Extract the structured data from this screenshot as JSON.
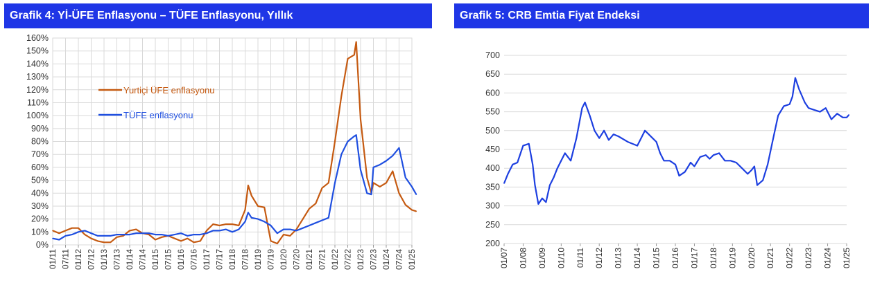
{
  "colors": {
    "banner": "#1f36e6",
    "ufe": "#c55a11",
    "tufe": "#1f4fe0",
    "crb": "#1d3fe0",
    "grid": "#d9d9d9"
  },
  "chart_data": [
    {
      "type": "line",
      "title": "Grafik 4: Yİ-ÜFE Enflasyonu – TÜFE Enflasyonu, Yıllık",
      "xlabel": "",
      "ylabel": "",
      "x_ticks": [
        "01/11",
        "07/11",
        "01/12",
        "07/12",
        "01/13",
        "07/13",
        "01/14",
        "07/14",
        "01/15",
        "07/15",
        "01/16",
        "07/16",
        "01/17",
        "07/17",
        "01/18",
        "07/18",
        "01/19",
        "07/19",
        "01/20",
        "07/20",
        "01/21",
        "07/21",
        "01/22",
        "07/22",
        "01/23",
        "07/23",
        "01/24",
        "07/24",
        "01/25"
      ],
      "ylim": [
        0,
        160
      ],
      "y_ticks": [
        "0%",
        "10%",
        "20%",
        "30%",
        "40%",
        "50%",
        "60%",
        "70%",
        "80%",
        "90%",
        "100%",
        "110%",
        "120%",
        "130%",
        "140%",
        "150%",
        "160%"
      ],
      "grid": true,
      "legend_position": "upper-left inside plot",
      "series": [
        {
          "name": "Yurtiçi ÜFE enflasyonu",
          "color": "#c55a11",
          "x": [
            2011.0,
            2011.25,
            2011.5,
            2011.75,
            2012.0,
            2012.25,
            2012.5,
            2012.75,
            2013.0,
            2013.25,
            2013.5,
            2013.75,
            2014.0,
            2014.25,
            2014.5,
            2014.75,
            2015.0,
            2015.25,
            2015.5,
            2015.75,
            2016.0,
            2016.25,
            2016.5,
            2016.75,
            2017.0,
            2017.25,
            2017.5,
            2017.75,
            2018.0,
            2018.25,
            2018.5,
            2018.62,
            2018.75,
            2019.0,
            2019.25,
            2019.5,
            2019.75,
            2020.0,
            2020.25,
            2020.5,
            2020.75,
            2021.0,
            2021.25,
            2021.5,
            2021.75,
            2022.0,
            2022.25,
            2022.5,
            2022.75,
            2022.83,
            2023.0,
            2023.25,
            2023.42,
            2023.5,
            2023.75,
            2024.0,
            2024.25,
            2024.5,
            2024.75,
            2025.0,
            2025.17
          ],
          "values": [
            11,
            9,
            11,
            13,
            13,
            8,
            5,
            3,
            2,
            2,
            6,
            7,
            11,
            12,
            9,
            8,
            4,
            6,
            7,
            5,
            3,
            5,
            2,
            3,
            11,
            16,
            15,
            16,
            16,
            15,
            27,
            46,
            38,
            30,
            29,
            3,
            1,
            8,
            7,
            12,
            20,
            28,
            32,
            44,
            48,
            80,
            115,
            144,
            147,
            157,
            97,
            52,
            40,
            48,
            45,
            48,
            57,
            40,
            31,
            27,
            26
          ]
        },
        {
          "name": "TÜFE enflasyonu",
          "color": "#1f4fe0",
          "x": [
            2011.0,
            2011.25,
            2011.5,
            2011.75,
            2012.0,
            2012.25,
            2012.5,
            2012.75,
            2013.0,
            2013.25,
            2013.5,
            2013.75,
            2014.0,
            2014.25,
            2014.5,
            2014.75,
            2015.0,
            2015.25,
            2015.5,
            2015.75,
            2016.0,
            2016.25,
            2016.5,
            2016.75,
            2017.0,
            2017.25,
            2017.5,
            2017.75,
            2018.0,
            2018.25,
            2018.5,
            2018.62,
            2018.75,
            2019.0,
            2019.25,
            2019.5,
            2019.75,
            2020.0,
            2020.25,
            2020.5,
            2020.75,
            2021.0,
            2021.25,
            2021.5,
            2021.75,
            2022.0,
            2022.25,
            2022.5,
            2022.75,
            2022.83,
            2023.0,
            2023.25,
            2023.42,
            2023.5,
            2023.75,
            2024.0,
            2024.25,
            2024.5,
            2024.75,
            2025.0,
            2025.17
          ],
          "values": [
            5,
            4,
            7,
            8,
            10,
            11,
            9,
            7,
            7,
            7,
            8,
            8,
            8,
            9,
            9,
            9,
            8,
            8,
            7,
            8,
            9,
            7,
            8,
            8,
            9,
            11,
            11,
            12,
            10,
            12,
            18,
            25,
            21,
            20,
            18,
            15,
            9,
            12,
            12,
            11,
            13,
            15,
            17,
            19,
            21,
            48,
            70,
            80,
            84,
            85,
            58,
            40,
            39,
            60,
            62,
            65,
            69,
            75,
            52,
            45,
            39
          ]
        }
      ]
    },
    {
      "type": "line",
      "title": "Grafik 5: CRB Emtia Fiyat Endeksi",
      "xlabel": "",
      "ylabel": "",
      "x_ticks": [
        "01/07",
        "01/08",
        "01/09",
        "01/10",
        "01/11",
        "01/12",
        "01/13",
        "01/14",
        "01/15",
        "01/16",
        "01/17",
        "01/18",
        "01/19",
        "01/20",
        "01/21",
        "01/22",
        "01/23",
        "01/24",
        "01/25"
      ],
      "ylim": [
        200,
        700
      ],
      "y_ticks": [
        "200",
        "250",
        "300",
        "350",
        "400",
        "450",
        "500",
        "550",
        "600",
        "650",
        "700"
      ],
      "grid": true,
      "series": [
        {
          "name": "",
          "color": "#1d3fe0",
          "x": [
            2007.0,
            2007.2,
            2007.45,
            2007.7,
            2008.0,
            2008.3,
            2008.5,
            2008.62,
            2008.8,
            2009.0,
            2009.2,
            2009.4,
            2009.6,
            2009.8,
            2010.0,
            2010.2,
            2010.5,
            2010.8,
            2011.1,
            2011.25,
            2011.5,
            2011.75,
            2012.0,
            2012.25,
            2012.5,
            2012.75,
            2013.0,
            2013.5,
            2014.0,
            2014.2,
            2014.4,
            2014.6,
            2014.8,
            2015.0,
            2015.2,
            2015.4,
            2015.7,
            2016.0,
            2016.2,
            2016.5,
            2016.8,
            2017.0,
            2017.3,
            2017.6,
            2017.8,
            2018.0,
            2018.3,
            2018.6,
            2018.9,
            2019.2,
            2019.5,
            2019.8,
            2020.0,
            2020.15,
            2020.3,
            2020.6,
            2020.85,
            2021.1,
            2021.4,
            2021.7,
            2022.0,
            2022.15,
            2022.3,
            2022.5,
            2022.8,
            2023.0,
            2023.3,
            2023.6,
            2023.9,
            2024.2,
            2024.5,
            2024.8,
            2025.0,
            2025.12
          ],
          "values": [
            360,
            385,
            410,
            415,
            460,
            465,
            410,
            355,
            305,
            320,
            310,
            355,
            375,
            400,
            420,
            440,
            420,
            480,
            560,
            575,
            540,
            500,
            480,
            500,
            475,
            490,
            485,
            470,
            460,
            480,
            500,
            490,
            480,
            470,
            440,
            420,
            420,
            410,
            380,
            390,
            415,
            405,
            430,
            435,
            425,
            435,
            440,
            420,
            420,
            415,
            400,
            385,
            395,
            405,
            355,
            368,
            410,
            470,
            540,
            565,
            570,
            590,
            640,
            610,
            575,
            560,
            555,
            550,
            560,
            530,
            545,
            535,
            535,
            542
          ]
        }
      ]
    }
  ]
}
